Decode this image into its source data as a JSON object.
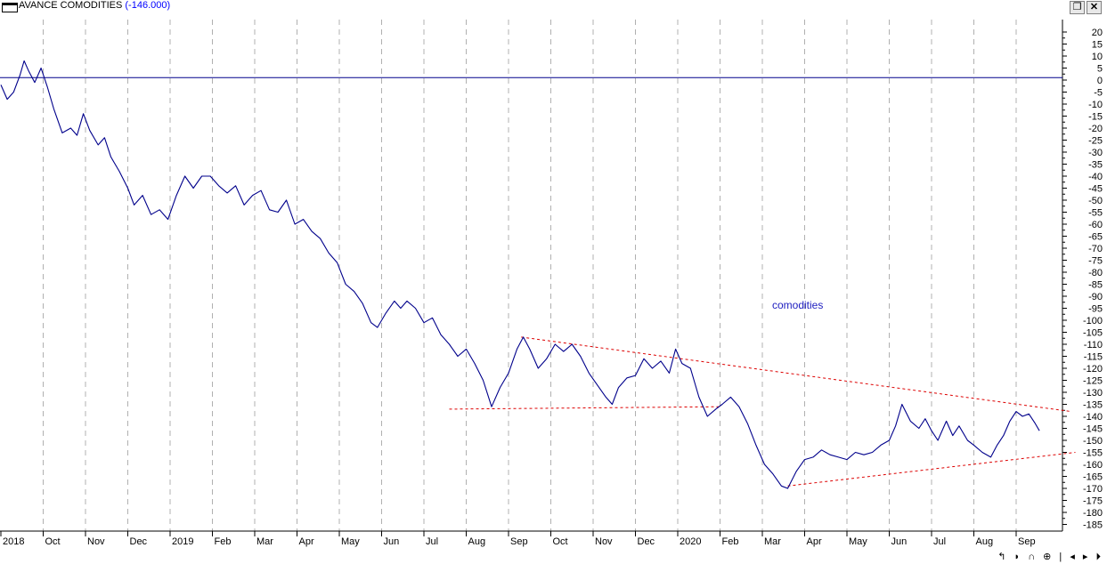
{
  "window": {
    "title": "AVANCE COMODITIES",
    "title_value": "(-146.000)",
    "restore_icon": "restore-icon",
    "close_icon": "close-icon",
    "restore_glyph": "❐",
    "close_glyph": "✕"
  },
  "series_label": "comodities",
  "statusbar": {
    "nav_glyphs": "↰ ◗ ∩ ⊕ | ◂ ▸ ⏵"
  },
  "colors": {
    "series": "#00008b",
    "trendline": "#dd0000",
    "zero_line": "#00008b",
    "grid": "#b0b0b0",
    "title_value": "#0000ff"
  },
  "chart_data": {
    "type": "line",
    "title": "AVANCE COMODITIES",
    "ylim": [
      -185,
      20
    ],
    "y_ticks": [
      20,
      15,
      10,
      5,
      0,
      -5,
      -10,
      -15,
      -20,
      -25,
      -30,
      -35,
      -40,
      -45,
      -50,
      -55,
      -60,
      -65,
      -70,
      -75,
      -80,
      -85,
      -90,
      -95,
      -100,
      -105,
      -110,
      -115,
      -120,
      -125,
      -130,
      -135,
      -140,
      -145,
      -150,
      -155,
      -160,
      -165,
      -170,
      -175,
      -180,
      -185
    ],
    "xlim": [
      0,
      25.4
    ],
    "x_ticks": [
      {
        "label": "2018",
        "x": 0.0
      },
      {
        "label": "Oct",
        "x": 1.0
      },
      {
        "label": "Nov",
        "x": 2.0
      },
      {
        "label": "Dec",
        "x": 3.0
      },
      {
        "label": "2019",
        "x": 4.0
      },
      {
        "label": "Feb",
        "x": 5.0
      },
      {
        "label": "Mar",
        "x": 6.0
      },
      {
        "label": "Apr",
        "x": 7.0
      },
      {
        "label": "May",
        "x": 8.0
      },
      {
        "label": "Jun",
        "x": 9.0
      },
      {
        "label": "Jul",
        "x": 10.0
      },
      {
        "label": "Aug",
        "x": 11.0
      },
      {
        "label": "Sep",
        "x": 12.0
      },
      {
        "label": "Oct",
        "x": 13.0
      },
      {
        "label": "Nov",
        "x": 14.0
      },
      {
        "label": "Dec",
        "x": 15.0
      },
      {
        "label": "2020",
        "x": 16.0
      },
      {
        "label": "Feb",
        "x": 17.0
      },
      {
        "label": "Mar",
        "x": 18.0
      },
      {
        "label": "Apr",
        "x": 19.0
      },
      {
        "label": "May",
        "x": 20.0
      },
      {
        "label": "Jun",
        "x": 21.0
      },
      {
        "label": "Jul",
        "x": 22.0
      },
      {
        "label": "Aug",
        "x": 23.0
      },
      {
        "label": "Sep",
        "x": 24.0
      }
    ],
    "reference_line": 1,
    "series": [
      {
        "name": "comodities",
        "points": [
          [
            0.0,
            -2
          ],
          [
            0.15,
            -8
          ],
          [
            0.3,
            -5
          ],
          [
            0.45,
            2
          ],
          [
            0.55,
            8
          ],
          [
            0.65,
            4
          ],
          [
            0.8,
            -1
          ],
          [
            0.95,
            5
          ],
          [
            1.1,
            -3
          ],
          [
            1.25,
            -12
          ],
          [
            1.45,
            -22
          ],
          [
            1.65,
            -20
          ],
          [
            1.8,
            -23
          ],
          [
            1.95,
            -14
          ],
          [
            2.1,
            -21
          ],
          [
            2.3,
            -27
          ],
          [
            2.45,
            -24
          ],
          [
            2.6,
            -32
          ],
          [
            2.8,
            -38
          ],
          [
            3.0,
            -45
          ],
          [
            3.15,
            -52
          ],
          [
            3.35,
            -48
          ],
          [
            3.55,
            -56
          ],
          [
            3.75,
            -54
          ],
          [
            3.95,
            -58
          ],
          [
            4.15,
            -48
          ],
          [
            4.35,
            -40
          ],
          [
            4.55,
            -45
          ],
          [
            4.75,
            -40
          ],
          [
            4.95,
            -40
          ],
          [
            5.15,
            -44
          ],
          [
            5.35,
            -47
          ],
          [
            5.55,
            -44
          ],
          [
            5.75,
            -52
          ],
          [
            5.95,
            -48
          ],
          [
            6.15,
            -46
          ],
          [
            6.35,
            -54
          ],
          [
            6.55,
            -55
          ],
          [
            6.75,
            -50
          ],
          [
            6.95,
            -60
          ],
          [
            7.15,
            -58
          ],
          [
            7.35,
            -63
          ],
          [
            7.55,
            -66
          ],
          [
            7.75,
            -72
          ],
          [
            7.95,
            -76
          ],
          [
            8.15,
            -85
          ],
          [
            8.35,
            -88
          ],
          [
            8.55,
            -93
          ],
          [
            8.75,
            -101
          ],
          [
            8.9,
            -103
          ],
          [
            9.1,
            -97
          ],
          [
            9.3,
            -92
          ],
          [
            9.45,
            -95
          ],
          [
            9.6,
            -92
          ],
          [
            9.8,
            -95
          ],
          [
            10.0,
            -101
          ],
          [
            10.2,
            -99
          ],
          [
            10.4,
            -106
          ],
          [
            10.6,
            -110
          ],
          [
            10.8,
            -115
          ],
          [
            11.0,
            -112
          ],
          [
            11.2,
            -118
          ],
          [
            11.4,
            -125
          ],
          [
            11.6,
            -136
          ],
          [
            11.8,
            -128
          ],
          [
            12.0,
            -122
          ],
          [
            12.2,
            -112
          ],
          [
            12.35,
            -107
          ],
          [
            12.5,
            -112
          ],
          [
            12.7,
            -120
          ],
          [
            12.9,
            -116
          ],
          [
            13.1,
            -110
          ],
          [
            13.3,
            -113
          ],
          [
            13.5,
            -110
          ],
          [
            13.7,
            -115
          ],
          [
            13.9,
            -122
          ],
          [
            14.1,
            -127
          ],
          [
            14.3,
            -132
          ],
          [
            14.45,
            -135
          ],
          [
            14.6,
            -128
          ],
          [
            14.8,
            -124
          ],
          [
            15.0,
            -123
          ],
          [
            15.2,
            -116
          ],
          [
            15.4,
            -120
          ],
          [
            15.6,
            -117
          ],
          [
            15.8,
            -122
          ],
          [
            15.95,
            -112
          ],
          [
            16.1,
            -118
          ],
          [
            16.3,
            -120
          ],
          [
            16.5,
            -132
          ],
          [
            16.7,
            -140
          ],
          [
            16.9,
            -137
          ],
          [
            17.05,
            -135
          ],
          [
            17.25,
            -132
          ],
          [
            17.45,
            -136
          ],
          [
            17.65,
            -143
          ],
          [
            17.85,
            -152
          ],
          [
            18.05,
            -160
          ],
          [
            18.25,
            -164
          ],
          [
            18.45,
            -169
          ],
          [
            18.6,
            -170
          ],
          [
            18.8,
            -163
          ],
          [
            19.0,
            -158
          ],
          [
            19.2,
            -157
          ],
          [
            19.4,
            -154
          ],
          [
            19.6,
            -156
          ],
          [
            19.8,
            -157
          ],
          [
            20.0,
            -158
          ],
          [
            20.2,
            -155
          ],
          [
            20.4,
            -156
          ],
          [
            20.6,
            -155
          ],
          [
            20.8,
            -152
          ],
          [
            21.0,
            -150
          ],
          [
            21.15,
            -144
          ],
          [
            21.3,
            -135
          ],
          [
            21.5,
            -142
          ],
          [
            21.7,
            -145
          ],
          [
            21.85,
            -141
          ],
          [
            22.0,
            -146
          ],
          [
            22.15,
            -150
          ],
          [
            22.35,
            -142
          ],
          [
            22.5,
            -148
          ],
          [
            22.65,
            -144
          ],
          [
            22.85,
            -150
          ],
          [
            23.0,
            -152
          ],
          [
            23.2,
            -155
          ],
          [
            23.4,
            -157
          ],
          [
            23.55,
            -152
          ],
          [
            23.7,
            -148
          ],
          [
            23.85,
            -142
          ],
          [
            24.0,
            -138
          ],
          [
            24.15,
            -140
          ],
          [
            24.3,
            -139
          ],
          [
            24.45,
            -143
          ],
          [
            24.55,
            -146
          ]
        ]
      }
    ],
    "trendlines": [
      {
        "from": [
          12.3,
          -107
        ],
        "to": [
          25.3,
          -138
        ]
      },
      {
        "from": [
          10.6,
          -137
        ],
        "to": [
          17.0,
          -136
        ]
      },
      {
        "from": [
          18.6,
          -169
        ],
        "to": [
          25.4,
          -155
        ]
      }
    ],
    "annotations": [
      "comodities"
    ],
    "grid": true,
    "legend": "none"
  }
}
